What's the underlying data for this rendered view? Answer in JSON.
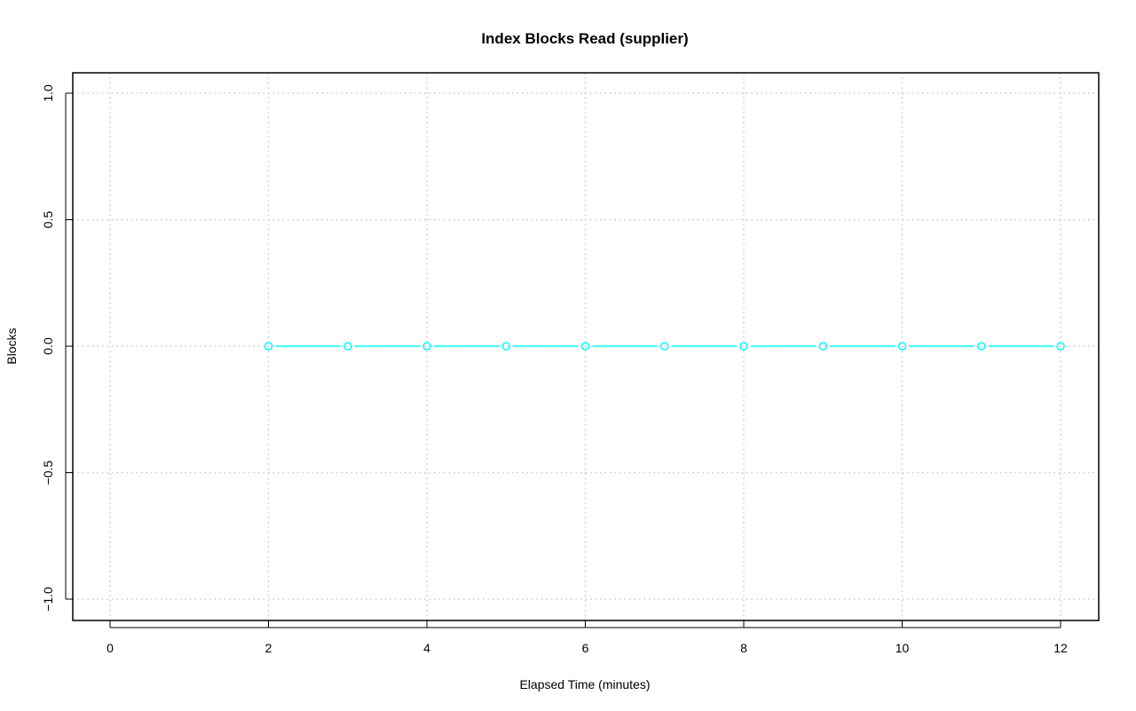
{
  "chart_data": {
    "type": "line",
    "title": "Index Blocks Read (supplier)",
    "xlabel": "Elapsed Time (minutes)",
    "ylabel": "Blocks",
    "xlim": [
      -0.5,
      12.5
    ],
    "ylim": [
      -1.08,
      1.08
    ],
    "xticks": [
      0,
      2,
      4,
      6,
      8,
      10,
      12
    ],
    "xtick_labels": [
      "0",
      "2",
      "4",
      "6",
      "8",
      "10",
      "12"
    ],
    "yticks": [
      -1.0,
      -0.5,
      0.0,
      0.5,
      1.0
    ],
    "ytick_labels": [
      "−1.0",
      "−0.5",
      "0.0",
      "0.5",
      "1.0"
    ],
    "grid": true,
    "series": [
      {
        "color": "#00FFFF",
        "marker": "open-circle",
        "x": [
          2,
          3,
          4,
          5,
          6,
          7,
          8,
          9,
          10,
          11,
          12
        ],
        "y": [
          0,
          0,
          0,
          0,
          0,
          0,
          0,
          0,
          0,
          0,
          0
        ]
      }
    ]
  }
}
